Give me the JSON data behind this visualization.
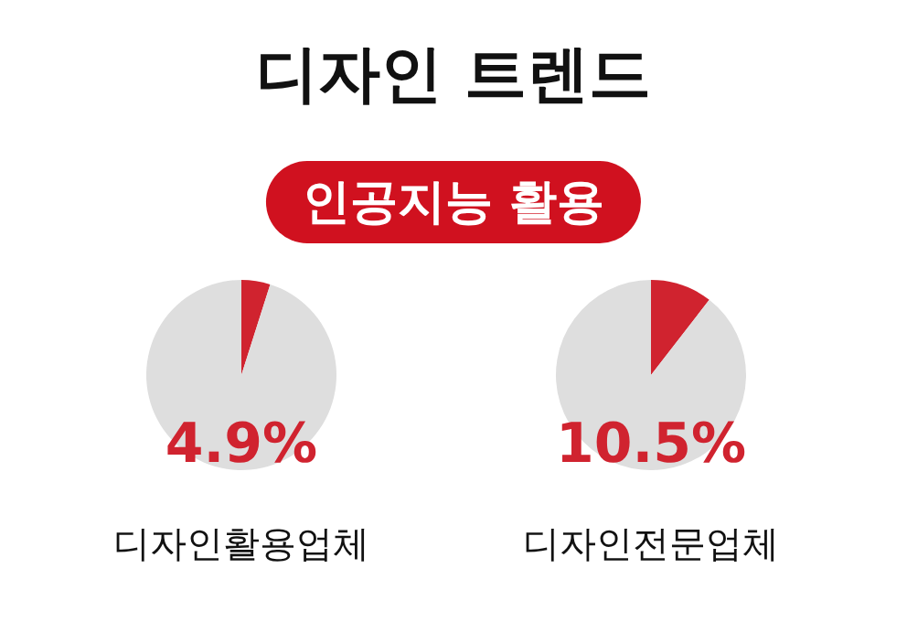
{
  "chart_data": [
    {
      "type": "pie",
      "title": "디자인 트렌드",
      "subtitle": "인공지능 활용",
      "categories": [
        null,
        null
      ],
      "values": [
        4.9,
        95.1
      ],
      "colors": [
        "#d0232f",
        "#dedede"
      ],
      "annotations": [
        "4.9%"
      ],
      "xlabel": "디자인활용업체"
    },
    {
      "type": "pie",
      "categories": [
        null,
        null
      ],
      "values": [
        10.5,
        89.5
      ],
      "colors": [
        "#d0232f",
        "#dedede"
      ],
      "annotations": [
        "10.5%"
      ],
      "xlabel": "디자인전문업체"
    }
  ]
}
